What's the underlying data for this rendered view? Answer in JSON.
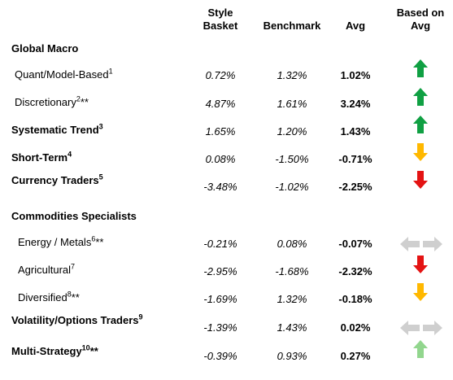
{
  "headers": {
    "style_basket": "Style\nBasket",
    "benchmark": "Benchmark",
    "avg": "Avg",
    "based_on_avg": "Based on\nAvg"
  },
  "rows": [
    {
      "label": "Global Macro",
      "sup": "",
      "suffix": "",
      "style_basket": "",
      "benchmark": "",
      "avg": "",
      "signal": ""
    },
    {
      "label": "Quant/Model-Based",
      "sup": "1",
      "suffix": "",
      "style_basket": "0.72%",
      "benchmark": "1.32%",
      "avg": "1.02%",
      "signal": "up-green"
    },
    {
      "label": "Discretionary",
      "sup": "2",
      "suffix": "**",
      "style_basket": "4.87%",
      "benchmark": "1.61%",
      "avg": "3.24%",
      "signal": "up-green"
    },
    {
      "label": "Systematic Trend",
      "sup": "3",
      "suffix": "",
      "style_basket": "1.65%",
      "benchmark": "1.20%",
      "avg": "1.43%",
      "signal": "up-green"
    },
    {
      "label": "Short-Term",
      "sup": "4",
      "suffix": "",
      "style_basket": "0.08%",
      "benchmark": "-1.50%",
      "avg": "-0.71%",
      "signal": "down-orange"
    },
    {
      "label": "Currency Traders",
      "sup": "5",
      "suffix": "",
      "style_basket": "-3.48%",
      "benchmark": "-1.02%",
      "avg": "-2.25%",
      "signal": "down-red"
    },
    {
      "label": "Commodities Specialists",
      "sup": "",
      "suffix": "",
      "style_basket": "",
      "benchmark": "",
      "avg": "",
      "signal": ""
    },
    {
      "label": "Energy / Metals",
      "sup": "6",
      "suffix": "**",
      "style_basket": "-0.21%",
      "benchmark": "0.08%",
      "avg": "-0.07%",
      "signal": "neutral-gray"
    },
    {
      "label": "Agricultural",
      "sup": "7",
      "suffix": "",
      "style_basket": "-2.95%",
      "benchmark": "-1.68%",
      "avg": "-2.32%",
      "signal": "down-red"
    },
    {
      "label": "Diversified",
      "sup": "8",
      "suffix": "**",
      "style_basket": "-1.69%",
      "benchmark": "1.32%",
      "avg": "-0.18%",
      "signal": "down-orange"
    },
    {
      "label": "Volatility/Options Traders",
      "sup": "9",
      "suffix": "",
      "style_basket": "-1.39%",
      "benchmark": "1.43%",
      "avg": "0.02%",
      "signal": "neutral-gray"
    },
    {
      "label": "Multi-Strategy",
      "sup": "10",
      "suffix": "**",
      "style_basket": "-0.39%",
      "benchmark": "0.93%",
      "avg": "0.27%",
      "signal": "up-lightgreen"
    }
  ],
  "colors": {
    "up-green": "#10a043",
    "up-lightgreen": "#92d68e",
    "down-orange": "#ffb800",
    "down-red": "#e41313",
    "neutral-gray": "#cfcfcf"
  }
}
